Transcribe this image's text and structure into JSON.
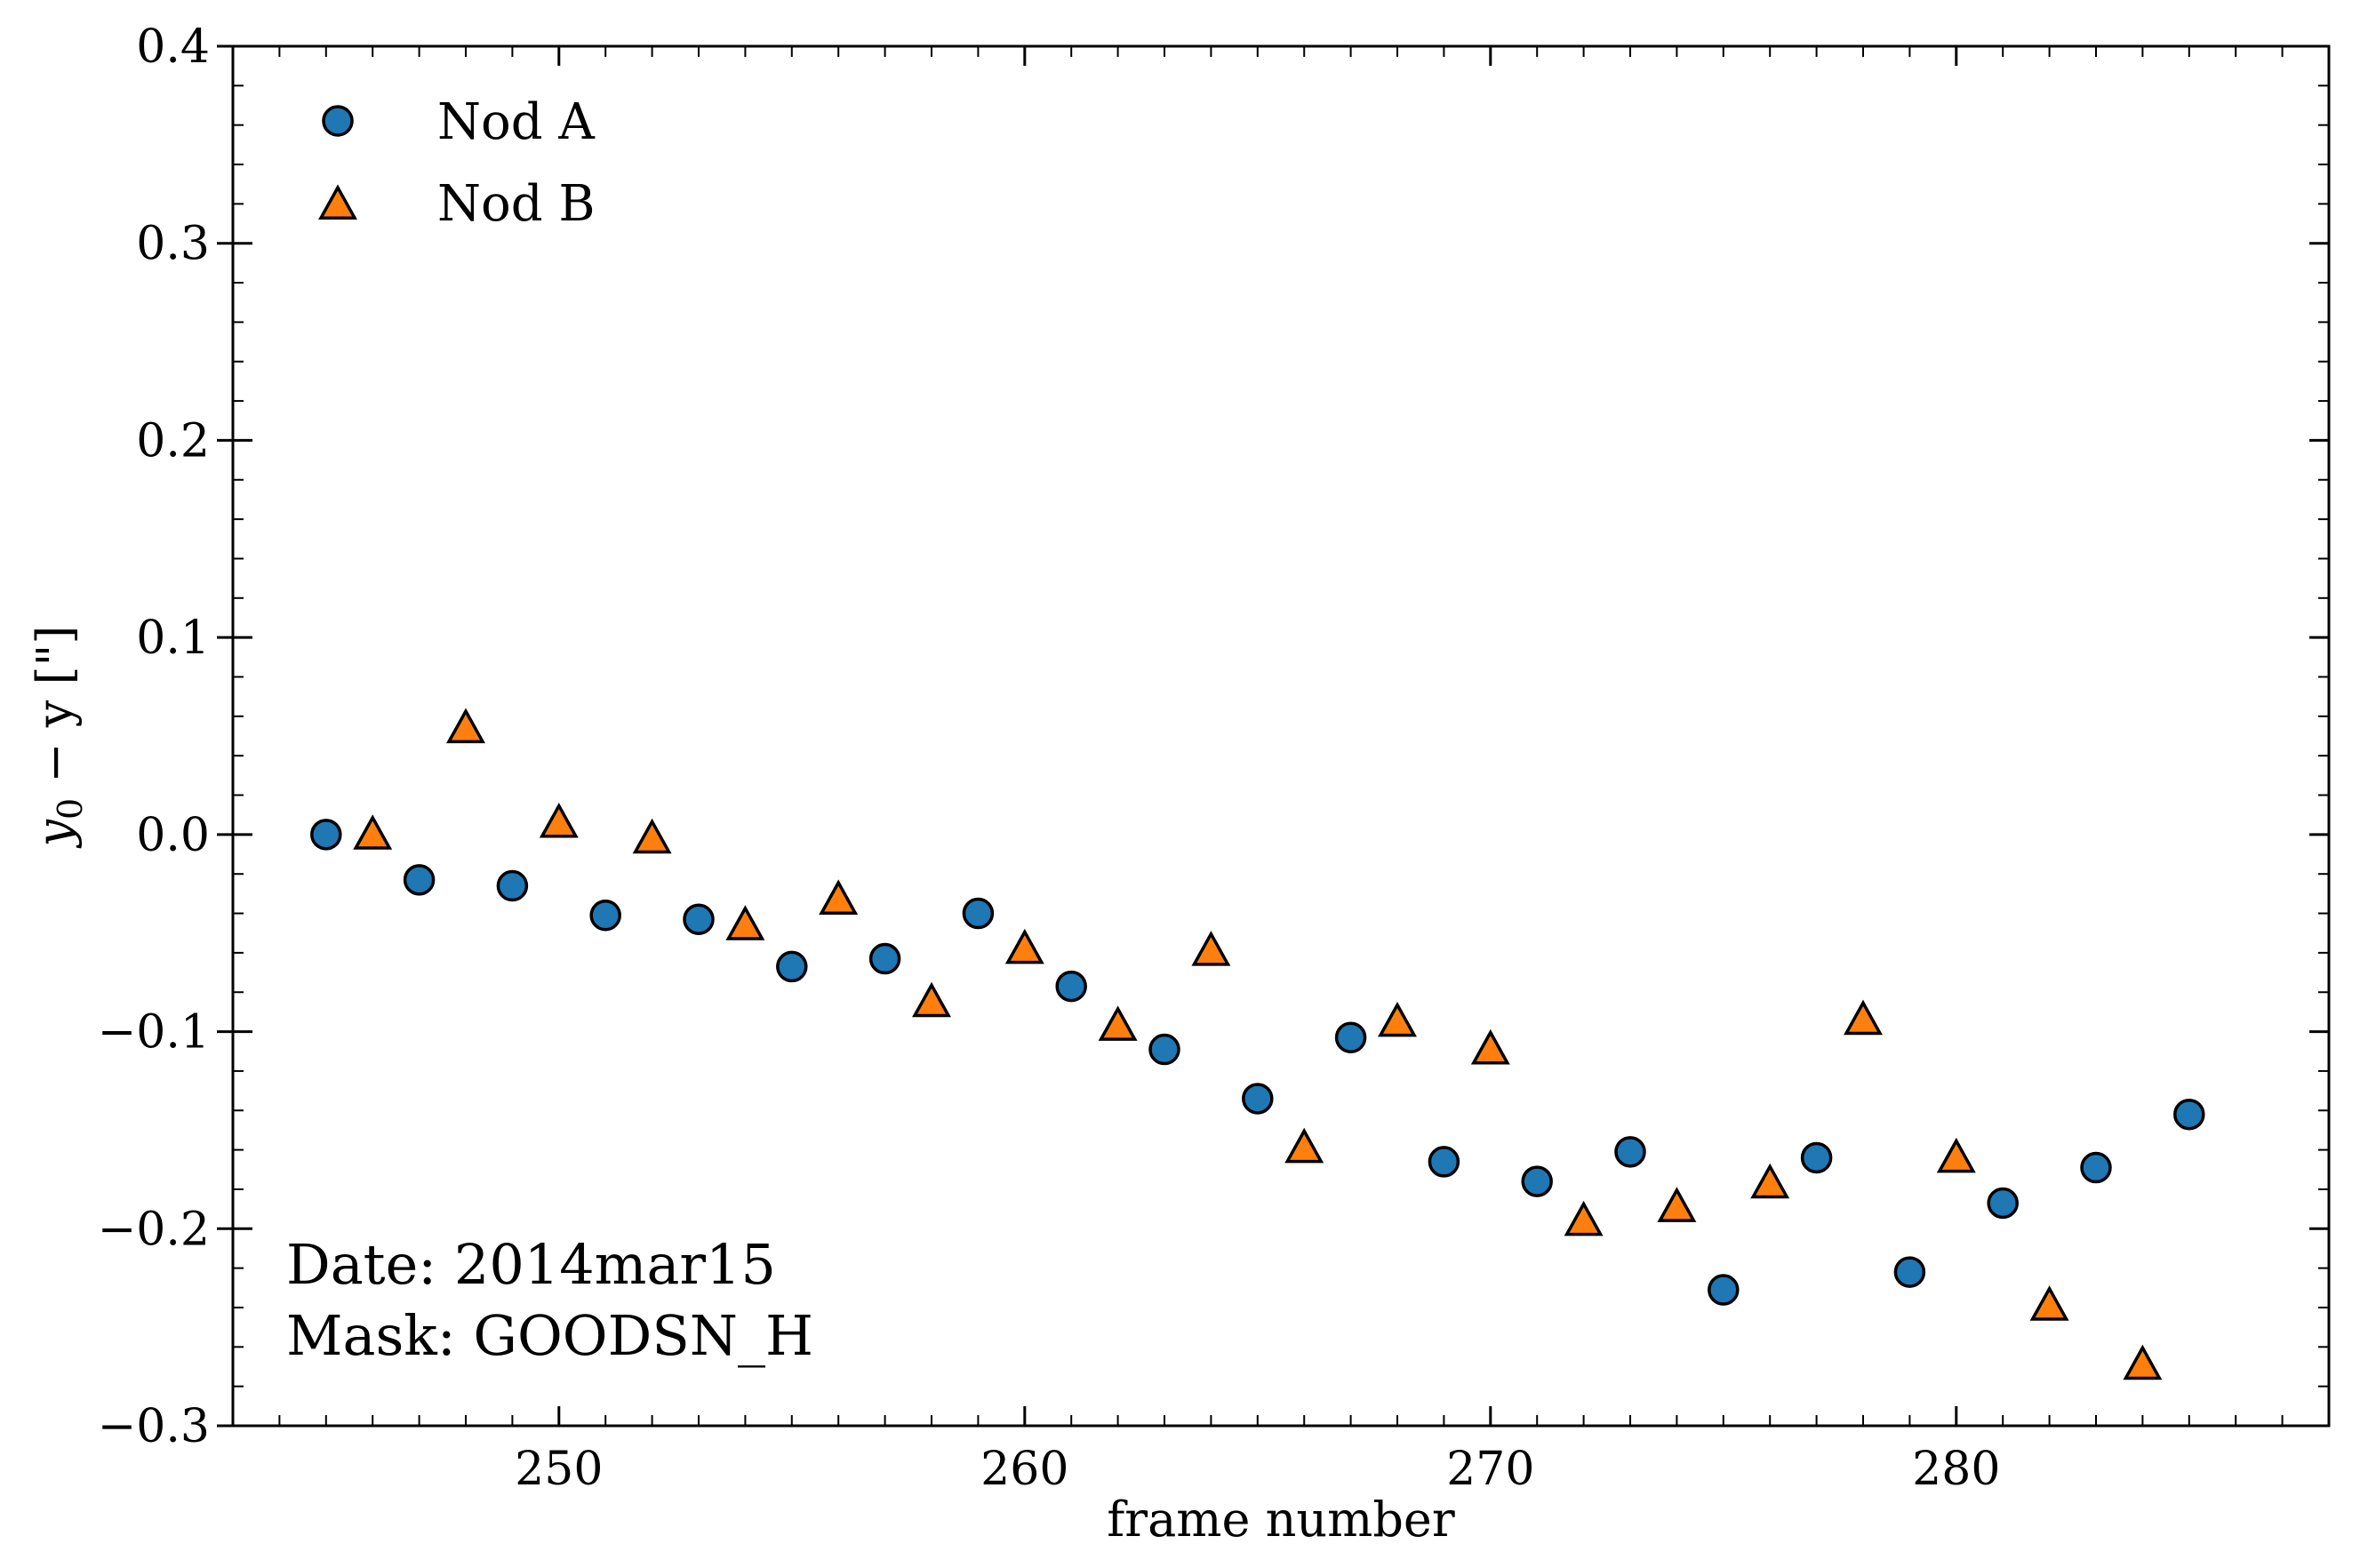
{
  "chart_data": {
    "type": "scatter",
    "xlabel": "frame number",
    "ylabel_main": "y",
    "ylabel_sub": "0",
    "ylabel_rest": " − y [\"]",
    "xlim": [
      243,
      288
    ],
    "ylim": [
      -0.3,
      0.4
    ],
    "x_ticks": [
      250,
      260,
      270,
      280
    ],
    "x_tick_labels": [
      "250",
      "260",
      "270",
      "280"
    ],
    "y_ticks": [
      -0.3,
      -0.2,
      -0.1,
      0.0,
      0.1,
      0.2,
      0.3,
      0.4
    ],
    "y_tick_labels": [
      "−0.3",
      "−0.2",
      "−0.1",
      "0.0",
      "0.1",
      "0.2",
      "0.3",
      "0.4"
    ],
    "legend_position": "top-left",
    "grid": false,
    "series": [
      {
        "name": "Nod A",
        "marker": "circle",
        "color": "#1f77b4",
        "x": [
          245,
          247,
          249,
          251,
          253,
          255,
          257,
          259,
          261,
          263,
          265,
          267,
          269,
          271,
          273,
          275,
          277,
          279,
          281,
          283,
          285
        ],
        "y": [
          0.0,
          -0.023,
          -0.026,
          -0.041,
          -0.043,
          -0.067,
          -0.063,
          -0.04,
          -0.077,
          -0.109,
          -0.134,
          -0.103,
          -0.166,
          -0.176,
          -0.161,
          -0.231,
          -0.164,
          -0.222,
          -0.187,
          -0.169,
          -0.142
        ]
      },
      {
        "name": "Nod B",
        "marker": "triangle",
        "color": "#ff7f0e",
        "x": [
          246,
          248,
          250,
          252,
          254,
          256,
          258,
          260,
          262,
          264,
          266,
          268,
          270,
          272,
          274,
          276,
          278,
          280,
          282,
          284
        ],
        "y": [
          0.0,
          0.054,
          0.006,
          -0.002,
          -0.046,
          -0.033,
          -0.085,
          -0.058,
          -0.097,
          -0.059,
          -0.159,
          -0.095,
          -0.109,
          -0.196,
          -0.189,
          -0.177,
          -0.094,
          -0.164,
          -0.239,
          -0.269
        ]
      }
    ],
    "annotations": [
      "Date: 2014mar15",
      "Mask: GOODSN_H"
    ]
  }
}
